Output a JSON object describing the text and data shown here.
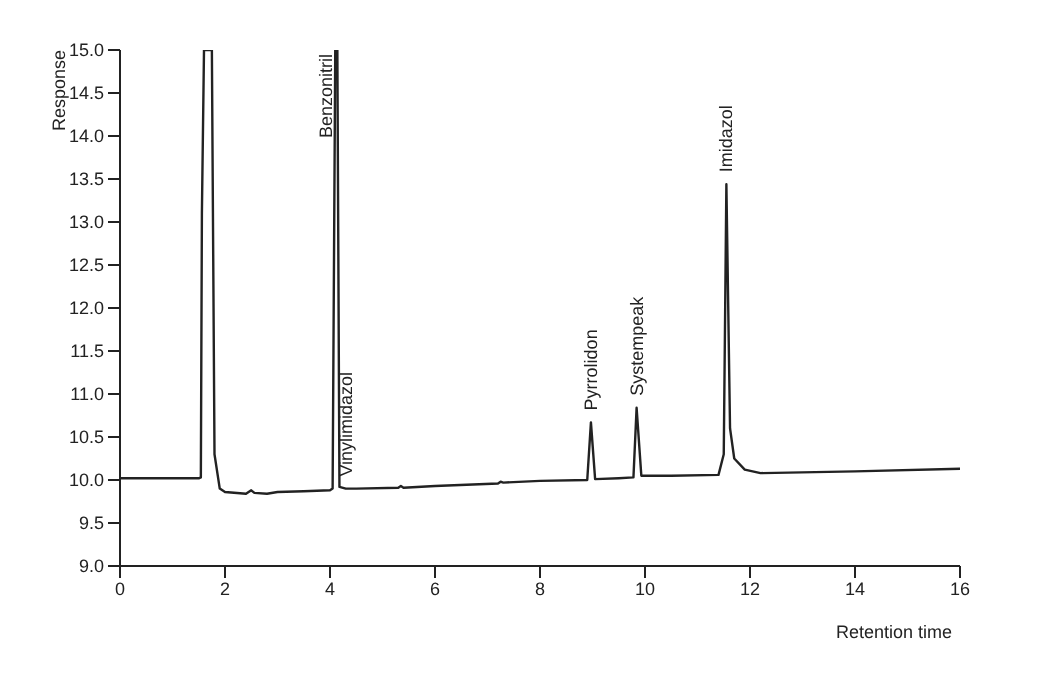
{
  "chart_data": {
    "type": "line",
    "xlabel": "Retention time",
    "ylabel": "Response",
    "series": [
      {
        "color": "#222222",
        "x": [
          0,
          1.5,
          1.54,
          1.56,
          1.6,
          1.75,
          1.8,
          1.9,
          2.0,
          2.4,
          2.5,
          2.56,
          2.8,
          3.0,
          3.5,
          4.0,
          4.05,
          4.1,
          4.14,
          4.18,
          4.3,
          4.5,
          5.3,
          5.35,
          5.4,
          6,
          7.2,
          7.25,
          7.3,
          8,
          8.9,
          8.97,
          9.05,
          9.5,
          9.78,
          9.84,
          9.93,
          10.5,
          11.4,
          11.5,
          11.55,
          11.62,
          11.7,
          11.9,
          12.2,
          14,
          16
        ],
        "values": [
          10.02,
          10.02,
          10.03,
          13.1,
          15,
          15,
          10.3,
          9.9,
          9.86,
          9.84,
          9.88,
          9.85,
          9.84,
          9.86,
          9.87,
          9.88,
          9.9,
          15,
          15,
          9.92,
          9.9,
          9.9,
          9.91,
          9.93,
          9.91,
          9.93,
          9.96,
          9.98,
          9.97,
          9.99,
          10.0,
          10.67,
          10.01,
          10.02,
          10.03,
          10.84,
          10.05,
          10.05,
          10.06,
          10.3,
          13.44,
          10.6,
          10.25,
          10.12,
          10.08,
          10.1,
          10.13
        ]
      }
    ],
    "xlim": [
      0,
      16
    ],
    "xticks": [
      0,
      2,
      4,
      6,
      8,
      10,
      12,
      14,
      16
    ],
    "ylim": [
      9,
      15
    ],
    "yticks": [
      {
        "value": 9,
        "label": "9.0"
      },
      {
        "value": 9.5,
        "label": "9.5"
      },
      {
        "value": 10,
        "label": "10.0"
      },
      {
        "value": 10.5,
        "label": "10.5"
      },
      {
        "value": 11,
        "label": "11.0"
      },
      {
        "value": 11.5,
        "label": "11.5"
      },
      {
        "value": 12,
        "label": "12.0"
      },
      {
        "value": 12.5,
        "label": "12.5"
      },
      {
        "value": 13,
        "label": "13.0"
      },
      {
        "value": 13.5,
        "label": "13.5"
      },
      {
        "value": 14,
        "label": "14.0"
      },
      {
        "value": 14.5,
        "label": "14.5"
      },
      {
        "value": 15,
        "label": "15.0"
      }
    ],
    "grid": false,
    "legend": false,
    "annotations": [
      {
        "text": "Benzonitril",
        "x": 4.11,
        "y": 15
      },
      {
        "text": "Vinylimidazol",
        "x": 4.3,
        "y": 9.9
      },
      {
        "text": "Pyrrolidon",
        "x": 8.97,
        "y": 10.67
      },
      {
        "text": "Systempeak",
        "x": 9.84,
        "y": 10.84
      },
      {
        "text": "Imidazol",
        "x": 11.55,
        "y": 13.44
      }
    ]
  }
}
